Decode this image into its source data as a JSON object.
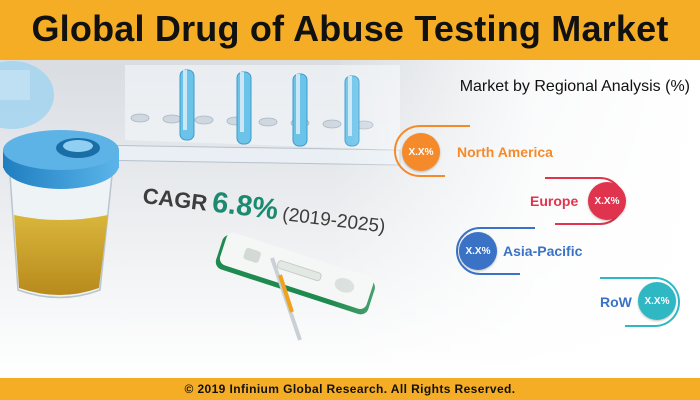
{
  "header": {
    "title": "Global Drug of Abuse Testing Market"
  },
  "cagr": {
    "label": "CAGR",
    "value": "6.8%",
    "period": "(2019-2025)"
  },
  "regional_analysis": {
    "title": "Market by Regional Analysis (%)",
    "regions": [
      {
        "name": "North America",
        "value": "X.X%",
        "color": "#f58a2a"
      },
      {
        "name": "Europe",
        "value": "X.X%",
        "color": "#e0344e"
      },
      {
        "name": "Asia-Pacific",
        "value": "X.X%",
        "color": "#3a73c6"
      },
      {
        "name": "RoW",
        "value": "X.X%",
        "color": "#2fb8c4"
      }
    ]
  },
  "footer": {
    "copyright": "© 2019 Infinium Global Research. All Rights Reserved."
  }
}
